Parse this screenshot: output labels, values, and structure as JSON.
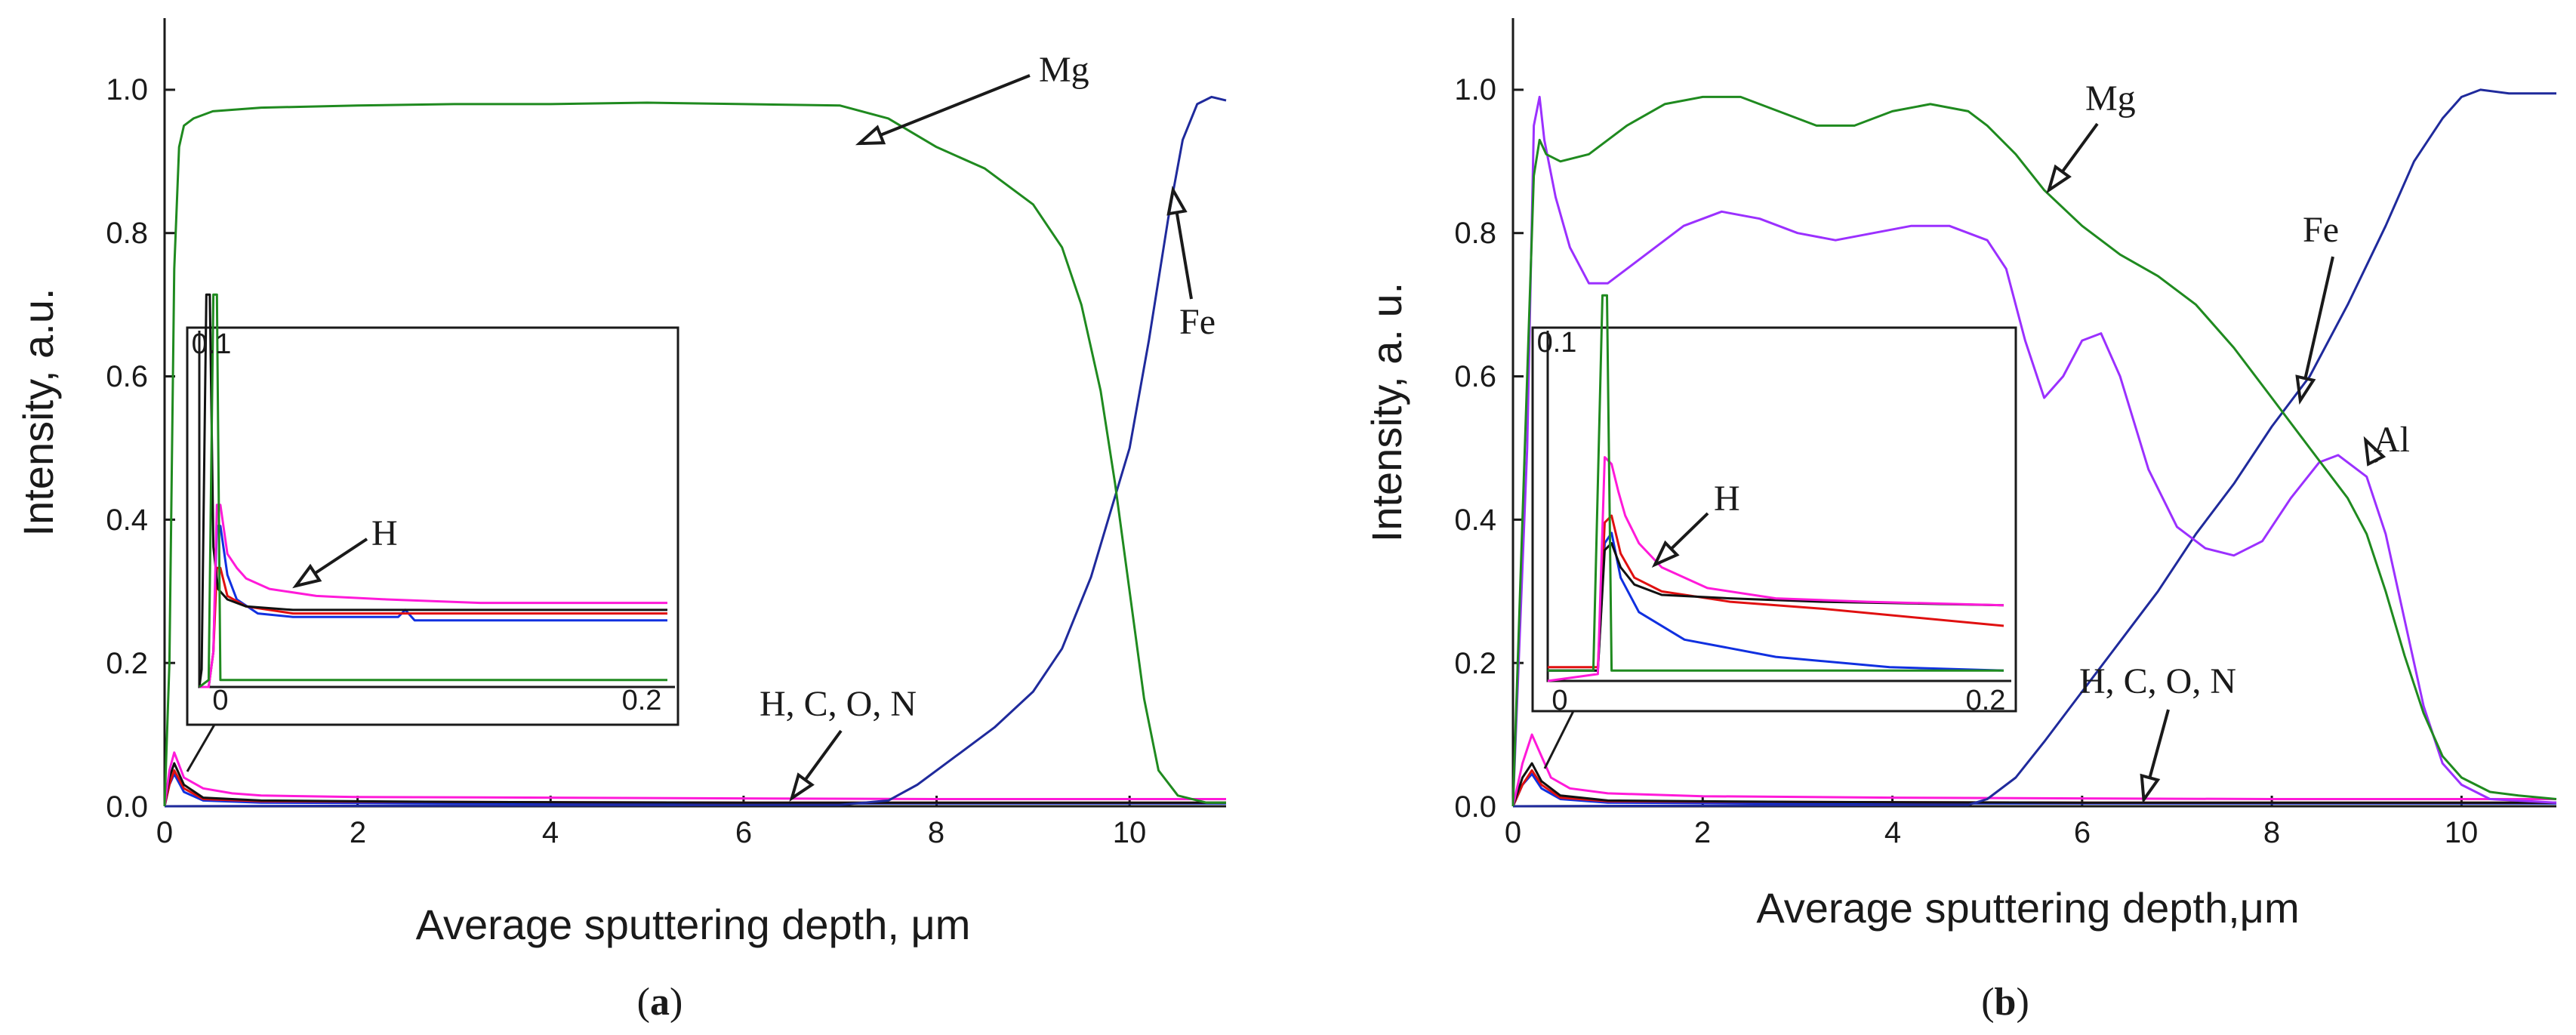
{
  "chart_data": [
    {
      "type": "line",
      "panel_label": "a",
      "xlabel": "Average sputtering depth, μm",
      "ylabel": "Intensity, a.u.",
      "xlim": [
        0,
        11
      ],
      "ylim": [
        0,
        1.1
      ],
      "x_ticks": [
        "0",
        "2",
        "4",
        "6",
        "8",
        "10"
      ],
      "y_ticks": [
        "0.0",
        "0.2",
        "0.4",
        "0.6",
        "0.8",
        "1.0"
      ],
      "colors": {
        "Mg": "#1f8a1f",
        "Fe": "#1f2a9c",
        "H": "#ff1ad9",
        "C": "#111111",
        "O": "#e01010",
        "N": "#1030e0",
        "Al": "#9b30ff"
      },
      "series": [
        {
          "name": "Mg",
          "color": "#1f8a1f",
          "x": [
            0,
            0.05,
            0.1,
            0.15,
            0.2,
            0.3,
            0.5,
            1,
            2,
            3,
            4,
            5,
            6,
            7,
            7.5,
            8,
            8.5,
            9,
            9.3,
            9.5,
            9.7,
            9.85,
            10,
            10.15,
            10.3,
            10.5,
            10.8,
            11
          ],
          "values": [
            0,
            0.2,
            0.75,
            0.92,
            0.95,
            0.96,
            0.97,
            0.975,
            0.978,
            0.98,
            0.98,
            0.982,
            0.98,
            0.978,
            0.96,
            0.92,
            0.89,
            0.84,
            0.78,
            0.7,
            0.58,
            0.45,
            0.3,
            0.15,
            0.05,
            0.015,
            0.005,
            0.005
          ]
        },
        {
          "name": "Fe",
          "color": "#1f2a9c",
          "x": [
            0,
            7,
            7.5,
            7.8,
            8.2,
            8.6,
            9,
            9.3,
            9.6,
            9.8,
            10,
            10.2,
            10.4,
            10.55,
            10.7,
            10.85,
            11
          ],
          "values": [
            0,
            0.002,
            0.008,
            0.03,
            0.07,
            0.11,
            0.16,
            0.22,
            0.32,
            0.41,
            0.5,
            0.65,
            0.82,
            0.93,
            0.98,
            0.99,
            0.985
          ]
        },
        {
          "name": "H",
          "color": "#ff1ad9",
          "x": [
            0,
            0.05,
            0.1,
            0.2,
            0.4,
            0.7,
            1,
            2,
            4,
            6,
            8,
            10,
            11
          ],
          "values": [
            0,
            0.05,
            0.075,
            0.04,
            0.025,
            0.018,
            0.015,
            0.013,
            0.012,
            0.011,
            0.01,
            0.01,
            0.01
          ]
        },
        {
          "name": "C",
          "color": "#111111",
          "x": [
            0,
            0.05,
            0.1,
            0.2,
            0.4,
            1,
            3,
            6,
            9,
            11
          ],
          "values": [
            0,
            0.04,
            0.06,
            0.03,
            0.012,
            0.008,
            0.006,
            0.005,
            0.005,
            0.005
          ]
        },
        {
          "name": "O",
          "color": "#e01010",
          "x": [
            0,
            0.05,
            0.1,
            0.2,
            0.4,
            1,
            3,
            6,
            9,
            11
          ],
          "values": [
            0,
            0.03,
            0.05,
            0.025,
            0.01,
            0.007,
            0.006,
            0.005,
            0.005,
            0.005
          ]
        },
        {
          "name": "N",
          "color": "#1030e0",
          "x": [
            0,
            0.05,
            0.1,
            0.2,
            0.4,
            1,
            3,
            6,
            9,
            11
          ],
          "values": [
            0,
            0.03,
            0.045,
            0.02,
            0.008,
            0.005,
            0.004,
            0.004,
            0.004,
            0.004
          ]
        }
      ],
      "annotations": [
        {
          "text": "Mg",
          "target": [
            7.2,
            0.925
          ]
        },
        {
          "text": "Fe",
          "target": [
            10.45,
            0.86
          ]
        },
        {
          "text": "H, C, O, N",
          "target": [
            6.5,
            0.005
          ]
        },
        {
          "text": "H",
          "target": "inset"
        }
      ],
      "inset": {
        "xlim": [
          0,
          0.2
        ],
        "ylim": [
          0,
          0.1
        ],
        "x_ticks": [
          "0",
          "0.2"
        ],
        "y_ticks": [
          "0.1"
        ],
        "series": [
          {
            "name": "Mg",
            "color": "#1f8a1f",
            "x": [
              0,
              0.004,
              0.006,
              0.0075,
              0.009,
              0.2
            ],
            "values": [
              0,
              0.002,
              0.12,
              0.12,
              0.002,
              0.002
            ]
          },
          {
            "name": "H",
            "color": "#ff1ad9",
            "x": [
              0,
              0.004,
              0.006,
              0.0075,
              0.009,
              0.012,
              0.016,
              0.02,
              0.03,
              0.05,
              0.08,
              0.12,
              0.2
            ],
            "values": [
              0,
              0,
              0.01,
              0.052,
              0.052,
              0.038,
              0.034,
              0.031,
              0.028,
              0.026,
              0.025,
              0.024,
              0.024
            ]
          },
          {
            "name": "C",
            "color": "#111111",
            "x": [
              0,
              0.001,
              0.003,
              0.0045,
              0.006,
              0.008,
              0.012,
              0.02,
              0.04,
              0.1,
              0.2
            ],
            "values": [
              0,
              0.005,
              0.12,
              0.12,
              0.04,
              0.028,
              0.025,
              0.023,
              0.022,
              0.022,
              0.022
            ]
          },
          {
            "name": "O",
            "color": "#e01010",
            "x": [
              0,
              0.004,
              0.006,
              0.0075,
              0.009,
              0.012,
              0.02,
              0.04,
              0.1,
              0.2
            ],
            "values": [
              0,
              0,
              0.01,
              0.034,
              0.034,
              0.026,
              0.023,
              0.021,
              0.021,
              0.021
            ]
          },
          {
            "name": "N",
            "color": "#1030e0",
            "x": [
              0,
              0.004,
              0.006,
              0.0075,
              0.009,
              0.012,
              0.016,
              0.025,
              0.04,
              0.07,
              0.085,
              0.088,
              0.092,
              0.2
            ],
            "values": [
              0,
              0,
              0.01,
              0.046,
              0.046,
              0.032,
              0.025,
              0.021,
              0.02,
              0.02,
              0.02,
              0.022,
              0.019,
              0.019
            ]
          }
        ]
      }
    },
    {
      "type": "line",
      "panel_label": "b",
      "xlabel": "Average sputtering depth,μm",
      "ylabel": "Intensity, a. u.",
      "xlim": [
        0,
        11
      ],
      "ylim": [
        0,
        1.1
      ],
      "x_ticks": [
        "0",
        "2",
        "4",
        "6",
        "8",
        "10"
      ],
      "y_ticks": [
        "0.0",
        "0.2",
        "0.4",
        "0.6",
        "0.8",
        "1.0"
      ],
      "series": [
        {
          "name": "Mg",
          "color": "#1f8a1f",
          "x": [
            0,
            0.15,
            0.22,
            0.28,
            0.35,
            0.5,
            0.8,
            1.2,
            1.6,
            2.0,
            2.4,
            2.8,
            3.2,
            3.6,
            4.0,
            4.4,
            4.8,
            5.0,
            5.3,
            5.6,
            6.0,
            6.4,
            6.8,
            7.2,
            7.6,
            8.0,
            8.4,
            8.8,
            9.0,
            9.2,
            9.4,
            9.6,
            9.8,
            10.0,
            10.3,
            10.6,
            11
          ],
          "values": [
            0,
            0.6,
            0.88,
            0.93,
            0.91,
            0.9,
            0.91,
            0.95,
            0.98,
            0.99,
            0.99,
            0.97,
            0.95,
            0.95,
            0.97,
            0.98,
            0.97,
            0.95,
            0.91,
            0.86,
            0.81,
            0.77,
            0.74,
            0.7,
            0.64,
            0.57,
            0.5,
            0.43,
            0.38,
            0.3,
            0.21,
            0.13,
            0.07,
            0.04,
            0.02,
            0.015,
            0.01
          ]
        },
        {
          "name": "Al",
          "color": "#9b30ff",
          "x": [
            0,
            0.15,
            0.22,
            0.28,
            0.33,
            0.45,
            0.6,
            0.8,
            1.0,
            1.4,
            1.8,
            2.2,
            2.6,
            3.0,
            3.4,
            3.8,
            4.2,
            4.6,
            5.0,
            5.2,
            5.4,
            5.6,
            5.8,
            6.0,
            6.2,
            6.4,
            6.7,
            7.0,
            7.3,
            7.6,
            7.9,
            8.2,
            8.5,
            8.7,
            9.0,
            9.2,
            9.4,
            9.6,
            9.8,
            10.0,
            10.3,
            11
          ],
          "values": [
            0,
            0.5,
            0.95,
            0.99,
            0.93,
            0.85,
            0.78,
            0.73,
            0.73,
            0.77,
            0.81,
            0.83,
            0.82,
            0.8,
            0.79,
            0.8,
            0.81,
            0.81,
            0.79,
            0.75,
            0.65,
            0.57,
            0.6,
            0.65,
            0.66,
            0.6,
            0.47,
            0.39,
            0.36,
            0.35,
            0.37,
            0.43,
            0.48,
            0.49,
            0.46,
            0.38,
            0.26,
            0.14,
            0.06,
            0.03,
            0.01,
            0.005
          ]
        },
        {
          "name": "Fe",
          "color": "#1f2a9c",
          "x": [
            0,
            4.8,
            5.0,
            5.3,
            5.6,
            6.0,
            6.4,
            6.8,
            7.2,
            7.6,
            8.0,
            8.4,
            8.8,
            9.2,
            9.5,
            9.8,
            10.0,
            10.2,
            10.5,
            11
          ],
          "values": [
            0,
            0.002,
            0.01,
            0.04,
            0.09,
            0.16,
            0.23,
            0.3,
            0.38,
            0.45,
            0.53,
            0.6,
            0.7,
            0.81,
            0.9,
            0.96,
            0.99,
            1.0,
            0.995,
            0.995
          ]
        },
        {
          "name": "H",
          "color": "#ff1ad9",
          "x": [
            0,
            0.1,
            0.2,
            0.3,
            0.4,
            0.6,
            1.0,
            2,
            4,
            6,
            8,
            10,
            11
          ],
          "values": [
            0,
            0.06,
            0.1,
            0.07,
            0.04,
            0.025,
            0.018,
            0.014,
            0.012,
            0.011,
            0.01,
            0.01,
            0.01
          ]
        },
        {
          "name": "C",
          "color": "#111111",
          "x": [
            0,
            0.1,
            0.2,
            0.3,
            0.5,
            1,
            3,
            6,
            9,
            11
          ],
          "values": [
            0,
            0.04,
            0.06,
            0.035,
            0.015,
            0.008,
            0.006,
            0.005,
            0.005,
            0.005
          ]
        },
        {
          "name": "O",
          "color": "#e01010",
          "x": [
            0,
            0.1,
            0.2,
            0.3,
            0.5,
            1,
            3,
            6,
            9,
            11
          ],
          "values": [
            0,
            0.03,
            0.05,
            0.03,
            0.012,
            0.007,
            0.006,
            0.005,
            0.005,
            0.005
          ]
        },
        {
          "name": "N",
          "color": "#1030e0",
          "x": [
            0,
            0.1,
            0.2,
            0.3,
            0.5,
            1,
            3,
            6,
            9,
            11
          ],
          "values": [
            0,
            0.03,
            0.045,
            0.025,
            0.01,
            0.005,
            0.004,
            0.004,
            0.004,
            0.004
          ]
        }
      ],
      "annotations": [
        {
          "text": "Mg",
          "target": [
            5.65,
            0.86
          ]
        },
        {
          "text": "Fe",
          "target": [
            8.3,
            0.56
          ]
        },
        {
          "text": "Al",
          "target": [
            8.75,
            0.49
          ]
        },
        {
          "text": "H, C, O, N",
          "target": [
            6.65,
            0.005
          ]
        },
        {
          "text": "H",
          "target": "inset"
        }
      ],
      "inset": {
        "xlim": [
          0,
          0.2
        ],
        "ylim": [
          0,
          0.1
        ],
        "x_ticks": [
          "0",
          "0.2"
        ],
        "y_ticks": [
          "0.1"
        ],
        "series": [
          {
            "name": "Mg",
            "color": "#1f8a1f",
            "x": [
              0,
              0.02,
              0.024,
              0.026,
              0.028,
              0.2
            ],
            "values": [
              0.003,
              0.003,
              0.12,
              0.12,
              0.003,
              0.003
            ]
          },
          {
            "name": "H",
            "color": "#ff1ad9",
            "x": [
              0,
              0.022,
              0.025,
              0.028,
              0.031,
              0.034,
              0.04,
              0.05,
              0.07,
              0.1,
              0.14,
              0.2
            ],
            "values": [
              0,
              0.002,
              0.065,
              0.063,
              0.055,
              0.048,
              0.04,
              0.033,
              0.027,
              0.024,
              0.023,
              0.022
            ]
          },
          {
            "name": "C",
            "color": "#111111",
            "x": [
              0,
              0.022,
              0.025,
              0.028,
              0.032,
              0.038,
              0.05,
              0.08,
              0.12,
              0.2
            ],
            "values": [
              0.003,
              0.003,
              0.038,
              0.04,
              0.033,
              0.028,
              0.025,
              0.024,
              0.023,
              0.022
            ]
          },
          {
            "name": "O",
            "color": "#e01010",
            "x": [
              0,
              0.022,
              0.025,
              0.028,
              0.032,
              0.038,
              0.05,
              0.08,
              0.12,
              0.2
            ],
            "values": [
              0.004,
              0.004,
              0.046,
              0.048,
              0.037,
              0.03,
              0.026,
              0.023,
              0.021,
              0.016
            ]
          },
          {
            "name": "N",
            "color": "#1030e0",
            "x": [
              0,
              0.022,
              0.025,
              0.028,
              0.032,
              0.04,
              0.06,
              0.1,
              0.15,
              0.2
            ],
            "values": [
              0.003,
              0.003,
              0.04,
              0.043,
              0.03,
              0.02,
              0.012,
              0.007,
              0.004,
              0.003
            ]
          }
        ]
      }
    }
  ]
}
